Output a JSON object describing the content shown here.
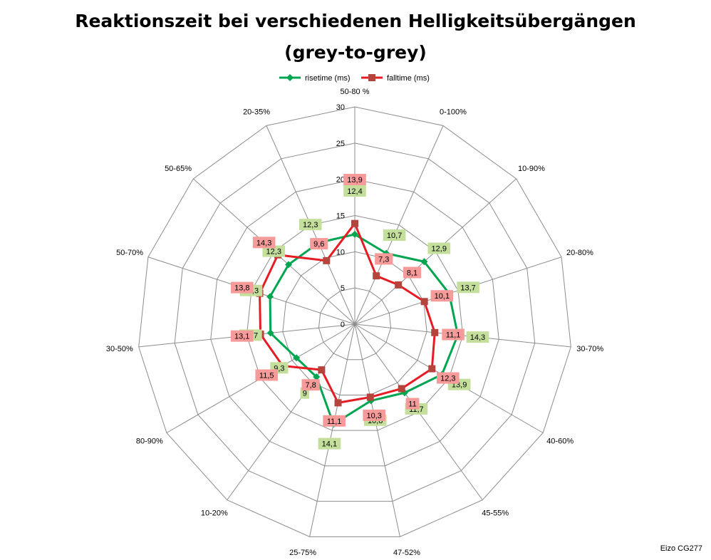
{
  "chart_data": {
    "type": "radar",
    "title_lines": [
      "Reaktionszeit bei verschiedenen Helligkeitsübergängen",
      "(grey-to-grey)"
    ],
    "categories": [
      "50-80 %",
      "0-100%",
      "10-90%",
      "20-80%",
      "30-70%",
      "40-60%",
      "45-55%",
      "47-52%",
      "25-75%",
      "10-20%",
      "80-90%",
      "30-50%",
      "50-70%",
      "50-65%",
      "20-35%"
    ],
    "radial_ticks": [
      "0",
      "5",
      "10",
      "15",
      "20",
      "25",
      "30"
    ],
    "rlim": [
      0,
      30
    ],
    "grid": true,
    "legend_position": "top",
    "series": [
      {
        "name": "risetime (ms)",
        "color": "#00a550",
        "label_bg": "#c4df9b",
        "values": [
          12.4,
          10.7,
          12.9,
          13.7,
          14.3,
          13.9,
          11.7,
          10.8,
          14.1,
          9.0,
          9.3,
          11.7,
          12.3,
          12.3,
          12.3
        ],
        "labels": [
          "12,4",
          "10,7",
          "12,9",
          "13,7",
          "14,3",
          "13,9",
          "11,7",
          "10,8",
          "14,1",
          "9",
          "9,3",
          "11,7",
          "12,3",
          "12,3",
          "12,3"
        ]
      },
      {
        "name": "falltime (ms)",
        "color": "#e51c23",
        "marker_color": "#b5443c",
        "label_bg": "#f69a9a",
        "values": [
          13.9,
          7.3,
          8.1,
          10.1,
          11.1,
          12.3,
          11.0,
          10.3,
          11.1,
          7.8,
          11.5,
          13.1,
          13.8,
          14.3,
          9.6
        ],
        "labels": [
          "13,9",
          "7,3",
          "8,1",
          "10,1",
          "11,1",
          "12,3",
          "11",
          "10,3",
          "11,1",
          "7,8",
          "11,5",
          "13,1",
          "13,8",
          "14,3",
          "9,6"
        ]
      }
    ]
  },
  "footer": {
    "note": "Eizo CG277"
  }
}
